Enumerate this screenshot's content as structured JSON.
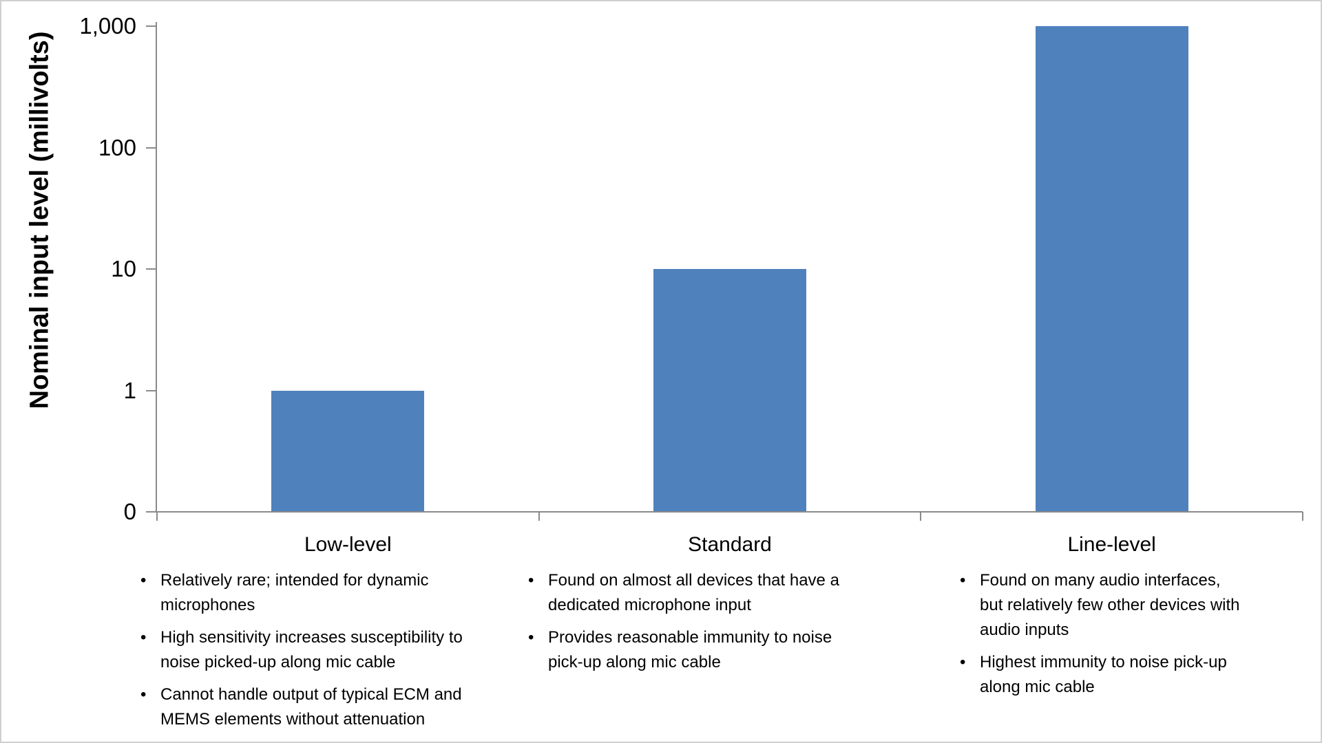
{
  "chart_data": {
    "type": "bar",
    "title": "",
    "ylabel": "Nominal input level (millivolts)",
    "xlabel": "",
    "yscale": "log",
    "ylim": [
      0.1,
      1000
    ],
    "grid": false,
    "legend": false,
    "yticks": [
      {
        "label": "1,000",
        "value": 1000
      },
      {
        "label": "100",
        "value": 100
      },
      {
        "label": "10",
        "value": 10
      },
      {
        "label": "1",
        "value": 1
      },
      {
        "label": "0",
        "value": 0.1
      }
    ],
    "categories": [
      "Low-level",
      "Standard",
      "Line-level"
    ],
    "values": [
      1,
      10,
      1000
    ],
    "bar_color": "#4F81BD",
    "axis_color": "#8A8A8A",
    "text_color": "#000000"
  },
  "annotations": {
    "columns": [
      {
        "category": "Low-level",
        "bullets": [
          "Relatively rare; intended for dynamic\nmicrophones",
          "High sensitivity increases susceptibility to\nnoise picked-up along mic cable",
          "Cannot handle output of typical ECM and\nMEMS elements without attenuation"
        ]
      },
      {
        "category": "Standard",
        "bullets": [
          "Found on almost all devices that have a\ndedicated microphone input",
          "Provides reasonable immunity to noise\npick-up along mic cable"
        ]
      },
      {
        "category": "Line-level",
        "bullets": [
          "Found on many audio interfaces,\nbut relatively few other devices with\naudio inputs",
          "Highest immunity to noise pick-up\nalong mic cable"
        ]
      }
    ]
  }
}
